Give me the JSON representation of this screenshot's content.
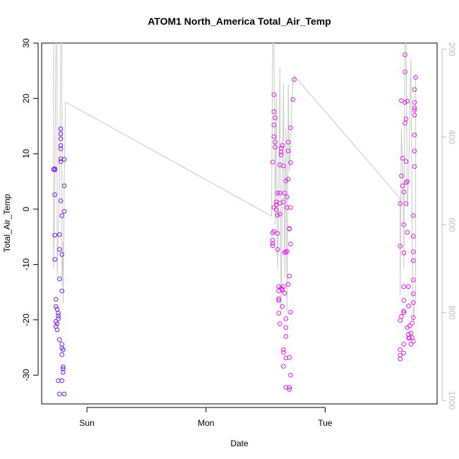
{
  "chart_data": {
    "type": "scatter",
    "title": "ATOM1 North_America Total_Air_Temp",
    "xlabel": "Date",
    "ylabel": "Total_Air_Temp",
    "x_ticks": [
      {
        "label": "Sun",
        "value": 1.0
      },
      {
        "label": "Mon",
        "value": 2.0
      },
      {
        "label": "Tue",
        "value": 3.0
      }
    ],
    "y_ticks": [
      -30,
      -20,
      -10,
      0,
      10,
      20,
      30
    ],
    "y_right_ticks": [
      200,
      400,
      600,
      800,
      1000
    ],
    "xlim": [
      0.62,
      3.94
    ],
    "ylim": [
      -35.2,
      30.0
    ],
    "y_right_lim": [
      1008,
      186
    ],
    "colors": {
      "series1_points": "#7a1cf0",
      "series2_points": "#e31ef0",
      "pressure_line": "#c8c8c8",
      "right_axis": "#bdbdbd"
    },
    "series": [
      {
        "points": [
          [
            0.73,
            7.1
          ],
          [
            0.73,
            7.3
          ],
          [
            0.72,
            7.2
          ],
          [
            0.73,
            2.6
          ],
          [
            0.73,
            -4.7
          ],
          [
            0.73,
            -9.1
          ],
          [
            0.74,
            -16.3
          ],
          [
            0.74,
            -17.6
          ],
          [
            0.75,
            -18.1
          ],
          [
            0.74,
            -20.3
          ],
          [
            0.75,
            -20.7
          ],
          [
            0.74,
            -21.2
          ],
          [
            0.75,
            -21.8
          ],
          [
            0.76,
            -19.3
          ],
          [
            0.76,
            -18.8
          ],
          [
            0.76,
            -19.8
          ],
          [
            0.77,
            -23.6
          ],
          [
            0.77,
            -12.6
          ],
          [
            0.77,
            -7.3
          ],
          [
            0.77,
            -4.6
          ],
          [
            0.78,
            1.5
          ],
          [
            0.78,
            8.6
          ],
          [
            0.78,
            9.1
          ],
          [
            0.78,
            10.9
          ],
          [
            0.78,
            11.5
          ],
          [
            0.78,
            12.7
          ],
          [
            0.78,
            13.6
          ],
          [
            0.78,
            14.5
          ],
          [
            0.79,
            -1.2
          ],
          [
            0.79,
            -8.2
          ],
          [
            0.79,
            -14.8
          ],
          [
            0.79,
            -24.4
          ],
          [
            0.79,
            -25.1
          ],
          [
            0.79,
            -26.3
          ],
          [
            0.79,
            -31.0
          ],
          [
            0.8,
            -25.4
          ],
          [
            0.8,
            -28.5
          ],
          [
            0.8,
            -29.5
          ],
          [
            0.81,
            -33.4
          ],
          [
            0.81,
            9.0
          ],
          [
            0.81,
            4.2
          ],
          [
            0.81,
            -0.4
          ],
          [
            0.8,
            -28.9
          ],
          [
            0.77,
            -33.4
          ],
          [
            0.76,
            -31.0
          ]
        ]
      },
      {
        "points": [
          [
            2.56,
            8.5
          ],
          [
            2.57,
            20.7
          ],
          [
            2.57,
            17.6
          ],
          [
            2.57,
            15.2
          ],
          [
            2.57,
            13.1
          ],
          [
            2.58,
            12.1
          ],
          [
            2.58,
            16.5
          ],
          [
            2.58,
            11.2
          ],
          [
            2.57,
            0.3
          ],
          [
            2.57,
            -4.0
          ],
          [
            2.56,
            -4.3
          ],
          [
            2.56,
            -5.6
          ],
          [
            2.56,
            -6.2
          ],
          [
            2.56,
            -6.6
          ],
          [
            2.59,
            -0.1
          ],
          [
            2.59,
            0.8
          ],
          [
            2.59,
            1.3
          ],
          [
            2.6,
            2.9
          ],
          [
            2.6,
            -1.1
          ],
          [
            2.6,
            -4.4
          ],
          [
            2.6,
            -7.3
          ],
          [
            2.61,
            -14.0
          ],
          [
            2.61,
            -14.8
          ],
          [
            2.61,
            -16.2
          ],
          [
            2.61,
            -16.5
          ],
          [
            2.61,
            -18.8
          ],
          [
            2.62,
            -20.7
          ],
          [
            2.62,
            1.1
          ],
          [
            2.62,
            2.9
          ],
          [
            2.62,
            -0.9
          ],
          [
            2.62,
            8.0
          ],
          [
            2.63,
            9.8
          ],
          [
            2.63,
            10.3
          ],
          [
            2.63,
            11.0
          ],
          [
            2.64,
            11.5
          ],
          [
            2.63,
            -14.3
          ],
          [
            2.64,
            -14.6
          ],
          [
            2.64,
            -14.5
          ],
          [
            2.65,
            -14.0
          ],
          [
            2.64,
            -17.6
          ],
          [
            2.65,
            -25.4
          ],
          [
            2.65,
            -25.9
          ],
          [
            2.65,
            -28.4
          ],
          [
            2.65,
            7.8
          ],
          [
            2.65,
            1.3
          ],
          [
            2.66,
            2.9
          ],
          [
            2.66,
            -7.8
          ],
          [
            2.66,
            -15.2
          ],
          [
            2.67,
            -19.8
          ],
          [
            2.67,
            -21.4
          ],
          [
            2.67,
            -23.0
          ],
          [
            2.67,
            -26.9
          ],
          [
            2.67,
            -32.2
          ],
          [
            2.67,
            5.1
          ],
          [
            2.67,
            -7.8
          ],
          [
            2.68,
            2.2
          ],
          [
            2.68,
            0.3
          ],
          [
            2.68,
            -7.6
          ],
          [
            2.69,
            -13.6
          ],
          [
            2.69,
            10.5
          ],
          [
            2.69,
            12.1
          ],
          [
            2.69,
            5.4
          ],
          [
            2.7,
            -3.5
          ],
          [
            2.7,
            -3.6
          ],
          [
            2.7,
            -12.1
          ],
          [
            2.7,
            -26.8
          ],
          [
            2.71,
            -30.0
          ],
          [
            2.7,
            -32.2
          ],
          [
            2.7,
            -32.6
          ],
          [
            2.71,
            -18.6
          ],
          [
            2.71,
            -6.3
          ],
          [
            2.71,
            0.3
          ],
          [
            2.71,
            8.4
          ],
          [
            2.71,
            14.7
          ],
          [
            2.73,
            19.8
          ],
          [
            2.74,
            23.4
          ],
          [
            3.63,
            1.0
          ],
          [
            3.64,
            6.0
          ],
          [
            3.63,
            -6.7
          ],
          [
            3.63,
            -20.1
          ],
          [
            3.63,
            -25.4
          ],
          [
            3.63,
            -26.4
          ],
          [
            3.63,
            -27.1
          ],
          [
            3.64,
            -19.4
          ],
          [
            3.64,
            19.6
          ],
          [
            3.65,
            4.2
          ],
          [
            3.65,
            9.2
          ],
          [
            3.66,
            3.1
          ],
          [
            3.66,
            -2.8
          ],
          [
            3.66,
            -7.9
          ],
          [
            3.66,
            -14.0
          ],
          [
            3.66,
            -16.5
          ],
          [
            3.66,
            -18.4
          ],
          [
            3.66,
            -18.7
          ],
          [
            3.66,
            -26.0
          ],
          [
            3.66,
            -24.4
          ],
          [
            3.67,
            15.5
          ],
          [
            3.67,
            19.3
          ],
          [
            3.67,
            24.8
          ],
          [
            3.67,
            27.9
          ],
          [
            3.68,
            4.8
          ],
          [
            3.68,
            1.0
          ],
          [
            3.68,
            16.3
          ],
          [
            3.69,
            19.5
          ],
          [
            3.68,
            8.6
          ],
          [
            3.69,
            5.0
          ],
          [
            3.69,
            -4.2
          ],
          [
            3.69,
            -21.4
          ],
          [
            3.7,
            -22.6
          ],
          [
            3.7,
            -23.3
          ],
          [
            3.7,
            -14.0
          ],
          [
            3.7,
            -17.5
          ],
          [
            3.71,
            -23.3
          ],
          [
            3.71,
            -21.1
          ],
          [
            3.72,
            -22.4
          ],
          [
            3.72,
            -24.4
          ],
          [
            3.73,
            -20.6
          ],
          [
            3.73,
            -23.2
          ],
          [
            3.74,
            -23.9
          ],
          [
            3.74,
            -19.6
          ],
          [
            3.74,
            -16.9
          ],
          [
            3.74,
            -15.3
          ],
          [
            3.74,
            -12.8
          ],
          [
            3.74,
            -9.3
          ],
          [
            3.74,
            -7.7
          ],
          [
            3.74,
            -4.9
          ],
          [
            3.74,
            -1.2
          ],
          [
            3.75,
            7.7
          ],
          [
            3.75,
            10.5
          ],
          [
            3.75,
            13.4
          ],
          [
            3.75,
            17.0
          ],
          [
            3.75,
            17.9
          ],
          [
            3.75,
            18.3
          ],
          [
            3.75,
            19.3
          ],
          [
            3.75,
            21.6
          ],
          [
            3.76,
            23.8
          ]
        ]
      }
    ],
    "pressure_line": [
      [
        0.72,
        186
      ],
      [
        0.72,
        700
      ],
      [
        0.73,
        520
      ],
      [
        0.74,
        186
      ],
      [
        0.75,
        186
      ],
      [
        0.75,
        720
      ],
      [
        0.77,
        520
      ],
      [
        0.78,
        186
      ],
      [
        0.79,
        186
      ],
      [
        0.79,
        740
      ],
      [
        0.8,
        640
      ],
      [
        0.8,
        780
      ],
      [
        0.81,
        500
      ],
      [
        0.82,
        320
      ],
      [
        2.55,
        580
      ],
      [
        2.56,
        186
      ],
      [
        2.57,
        186
      ],
      [
        2.58,
        600
      ],
      [
        2.59,
        300
      ],
      [
        2.6,
        700
      ],
      [
        2.61,
        560
      ],
      [
        2.62,
        240
      ],
      [
        2.63,
        800
      ],
      [
        2.64,
        560
      ],
      [
        2.65,
        280
      ],
      [
        2.66,
        720
      ],
      [
        2.67,
        380
      ],
      [
        2.68,
        800
      ],
      [
        2.69,
        280
      ],
      [
        2.7,
        480
      ],
      [
        2.71,
        420
      ],
      [
        2.72,
        320
      ],
      [
        2.73,
        280
      ],
      [
        2.74,
        260
      ],
      [
        3.63,
        540
      ],
      [
        3.63,
        760
      ],
      [
        3.64,
        380
      ],
      [
        3.65,
        460
      ],
      [
        3.66,
        640
      ],
      [
        3.66,
        700
      ],
      [
        3.67,
        186
      ],
      [
        3.68,
        186
      ],
      [
        3.69,
        560
      ],
      [
        3.7,
        500
      ],
      [
        3.72,
        220
      ],
      [
        3.73,
        600
      ],
      [
        3.74,
        820
      ],
      [
        3.75,
        780
      ],
      [
        3.76,
        760
      ],
      [
        3.76,
        260
      ]
    ]
  }
}
